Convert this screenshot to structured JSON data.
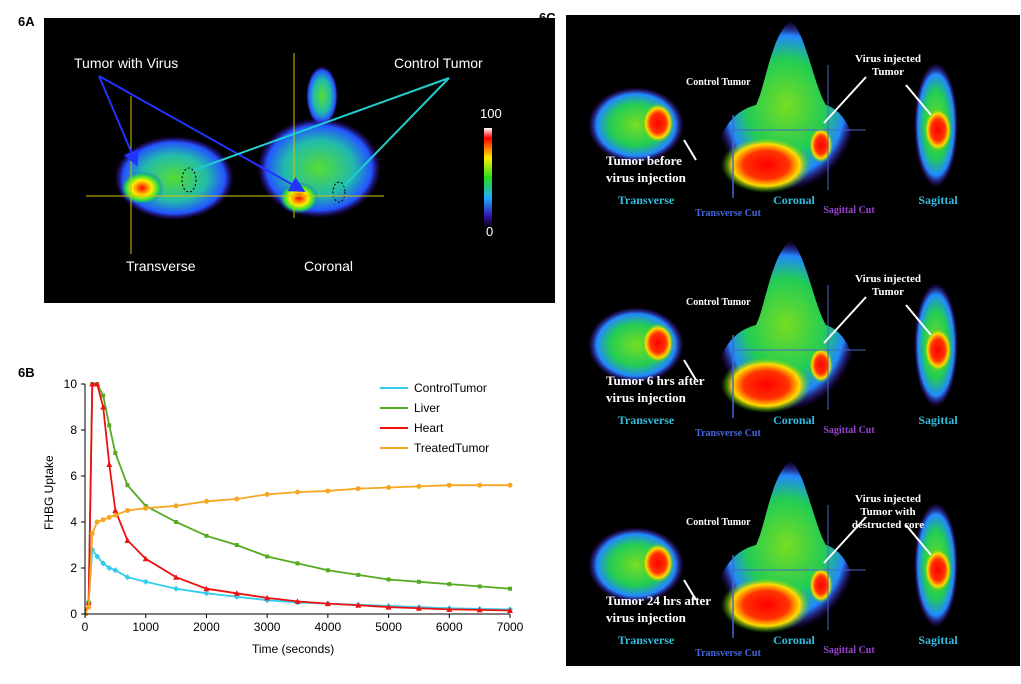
{
  "panel_labels": {
    "a": "6A",
    "b": "6B",
    "c": "6C"
  },
  "panel_a": {
    "tumor_with_virus": "Tumor with Virus",
    "control_tumor": "Control Tumor",
    "transverse": "Transverse",
    "coronal": "Coronal",
    "scale_max": "100",
    "scale_min": "0"
  },
  "panel_c": {
    "rows": [
      {
        "tumor_caption_1": "Tumor before",
        "tumor_caption_2": "virus injection",
        "virus_1": "Virus injected",
        "virus_2": "Tumor",
        "virus_3": ""
      },
      {
        "tumor_caption_1": "Tumor 6 hrs after",
        "tumor_caption_2": "virus injection",
        "virus_1": "Virus injected",
        "virus_2": "Tumor",
        "virus_3": ""
      },
      {
        "tumor_caption_1": "Tumor 24 hrs after",
        "tumor_caption_2": "virus injection",
        "virus_1": "Virus injected",
        "virus_2": "Tumor with",
        "virus_3": "destructed core"
      }
    ],
    "control_tumor": "Control Tumor",
    "transverse": "Transverse",
    "coronal": "Coronal",
    "sagittal": "Sagittal",
    "transverse_cut": "Transverse Cut",
    "sagittal_cut": "Sagittal Cut"
  },
  "chart_data": {
    "type": "line",
    "title": "",
    "xlabel": "Time (seconds)",
    "ylabel": "FHBG Uptake",
    "xlim": [
      0,
      7000
    ],
    "ylim": [
      0,
      10
    ],
    "xticks": [
      0,
      1000,
      2000,
      3000,
      4000,
      5000,
      6000,
      7000
    ],
    "yticks": [
      0,
      2,
      4,
      6,
      8,
      10
    ],
    "legend_position": "top-right",
    "colors": {
      "ControlTumor": "#33ccee",
      "Liver": "#55aa22",
      "Heart": "#ee1111",
      "TreatedTumor": "#f5a623"
    },
    "series": [
      {
        "name": "ControlTumor",
        "x": [
          0,
          60,
          120,
          200,
          300,
          400,
          500,
          700,
          1000,
          1500,
          2000,
          2500,
          3000,
          3500,
          4000,
          4500,
          5000,
          5500,
          6000,
          6500,
          7000
        ],
        "values": [
          0,
          0.5,
          2.8,
          2.5,
          2.2,
          2.0,
          1.9,
          1.6,
          1.4,
          1.1,
          0.9,
          0.75,
          0.6,
          0.5,
          0.45,
          0.4,
          0.35,
          0.3,
          0.25,
          0.22,
          0.2
        ]
      },
      {
        "name": "Liver",
        "x": [
          0,
          60,
          120,
          200,
          300,
          400,
          500,
          700,
          1000,
          1500,
          2000,
          2500,
          3000,
          3500,
          4000,
          4500,
          5000,
          5500,
          6000,
          6500,
          7000
        ],
        "values": [
          0,
          0.5,
          10,
          10,
          9.5,
          8.2,
          7.0,
          5.6,
          4.7,
          4.0,
          3.4,
          3.0,
          2.5,
          2.2,
          1.9,
          1.7,
          1.5,
          1.4,
          1.3,
          1.2,
          1.1
        ]
      },
      {
        "name": "Heart",
        "x": [
          0,
          60,
          120,
          200,
          300,
          400,
          500,
          700,
          1000,
          1500,
          2000,
          2500,
          3000,
          3500,
          4000,
          4500,
          5000,
          5500,
          6000,
          6500,
          7000
        ],
        "values": [
          0,
          0.5,
          10,
          10,
          9.0,
          6.5,
          4.5,
          3.2,
          2.4,
          1.6,
          1.1,
          0.9,
          0.7,
          0.55,
          0.45,
          0.38,
          0.3,
          0.25,
          0.2,
          0.18,
          0.15
        ]
      },
      {
        "name": "TreatedTumor",
        "x": [
          0,
          60,
          120,
          200,
          300,
          400,
          500,
          700,
          1000,
          1500,
          2000,
          2500,
          3000,
          3500,
          4000,
          4500,
          5000,
          5500,
          6000,
          6500,
          7000
        ],
        "values": [
          0,
          0.3,
          3.5,
          4.0,
          4.1,
          4.2,
          4.3,
          4.5,
          4.6,
          4.7,
          4.9,
          5.0,
          5.2,
          5.3,
          5.35,
          5.45,
          5.5,
          5.55,
          5.6,
          5.6,
          5.6
        ]
      }
    ]
  }
}
